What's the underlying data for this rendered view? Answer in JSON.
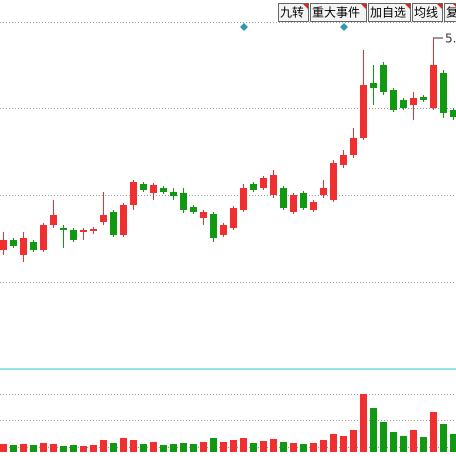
{
  "chart_data": {
    "type": "candlestick",
    "open": [
      2.9,
      3.0,
      2.85,
      2.98,
      2.9,
      3.15,
      3.12,
      3.1,
      3.08,
      3.09,
      3.18,
      3.28,
      3.05,
      3.35,
      3.56,
      3.47,
      3.52,
      3.48,
      3.47,
      3.33,
      3.22,
      3.26,
      3.05,
      3.12,
      3.3,
      3.56,
      3.52,
      3.45,
      3.52,
      3.28,
      3.47,
      3.3,
      3.45,
      3.4,
      3.75,
      3.85,
      4.02,
      4.57,
      4.75,
      4.5,
      4.4,
      4.35,
      4.43,
      4.32,
      4.67,
      4.3
    ],
    "close": [
      3.0,
      2.94,
      3.02,
      2.9,
      3.15,
      3.25,
      3.1,
      3.0,
      3.1,
      3.11,
      3.25,
      3.05,
      3.35,
      3.58,
      3.5,
      3.55,
      3.48,
      3.44,
      3.3,
      3.28,
      3.28,
      3.02,
      3.15,
      3.32,
      3.52,
      3.5,
      3.62,
      3.65,
      3.32,
      3.45,
      3.32,
      3.38,
      3.52,
      3.77,
      3.85,
      4.02,
      4.55,
      4.52,
      4.48,
      4.3,
      4.32,
      4.42,
      4.4,
      4.75,
      4.27,
      4.23
    ],
    "high": [
      3.08,
      3.02,
      3.08,
      3.0,
      3.17,
      3.4,
      3.15,
      3.12,
      3.12,
      3.13,
      3.48,
      3.3,
      3.37,
      3.6,
      3.58,
      3.57,
      3.54,
      3.52,
      3.52,
      3.35,
      3.3,
      3.28,
      3.17,
      3.34,
      3.56,
      3.58,
      3.64,
      3.7,
      3.54,
      3.47,
      3.49,
      3.4,
      3.6,
      3.8,
      3.9,
      4.12,
      4.9,
      4.75,
      4.78,
      4.52,
      4.42,
      4.48,
      4.45,
      5.02,
      4.7,
      4.32
    ],
    "low": [
      2.85,
      2.92,
      2.78,
      2.88,
      2.88,
      3.12,
      2.92,
      2.98,
      3.0,
      3.06,
      3.15,
      3.03,
      3.03,
      3.3,
      3.48,
      3.4,
      3.46,
      3.4,
      3.27,
      3.26,
      3.15,
      2.98,
      3.03,
      3.1,
      3.28,
      3.48,
      3.5,
      3.42,
      3.3,
      3.26,
      3.3,
      3.28,
      3.42,
      3.38,
      3.72,
      3.82,
      4.0,
      4.35,
      4.45,
      4.28,
      4.3,
      4.2,
      4.38,
      4.3,
      4.22,
      4.2
    ],
    "volume": [
      8,
      7,
      8,
      7,
      9,
      8,
      6,
      7,
      6,
      7,
      12,
      9,
      14,
      12,
      8,
      10,
      7,
      8,
      9,
      8,
      10,
      14,
      10,
      12,
      14,
      9,
      11,
      13,
      10,
      9,
      8,
      9,
      12,
      18,
      16,
      22,
      58,
      44,
      30,
      20,
      16,
      22,
      15,
      40,
      28,
      18
    ],
    "up_color": "#f03030",
    "down_color": "#119911",
    "ylim": [
      1.75,
      5.4
    ],
    "yticks": [
      2.58,
      3.45,
      4.32,
      5.18
    ],
    "volume_lim": [
      0,
      80
    ],
    "volume_ticks": [
      5,
      32,
      58
    ],
    "annotation": "5.",
    "toolbar": [
      "九转",
      "重大事件",
      "加自选",
      "均线",
      "复"
    ]
  }
}
